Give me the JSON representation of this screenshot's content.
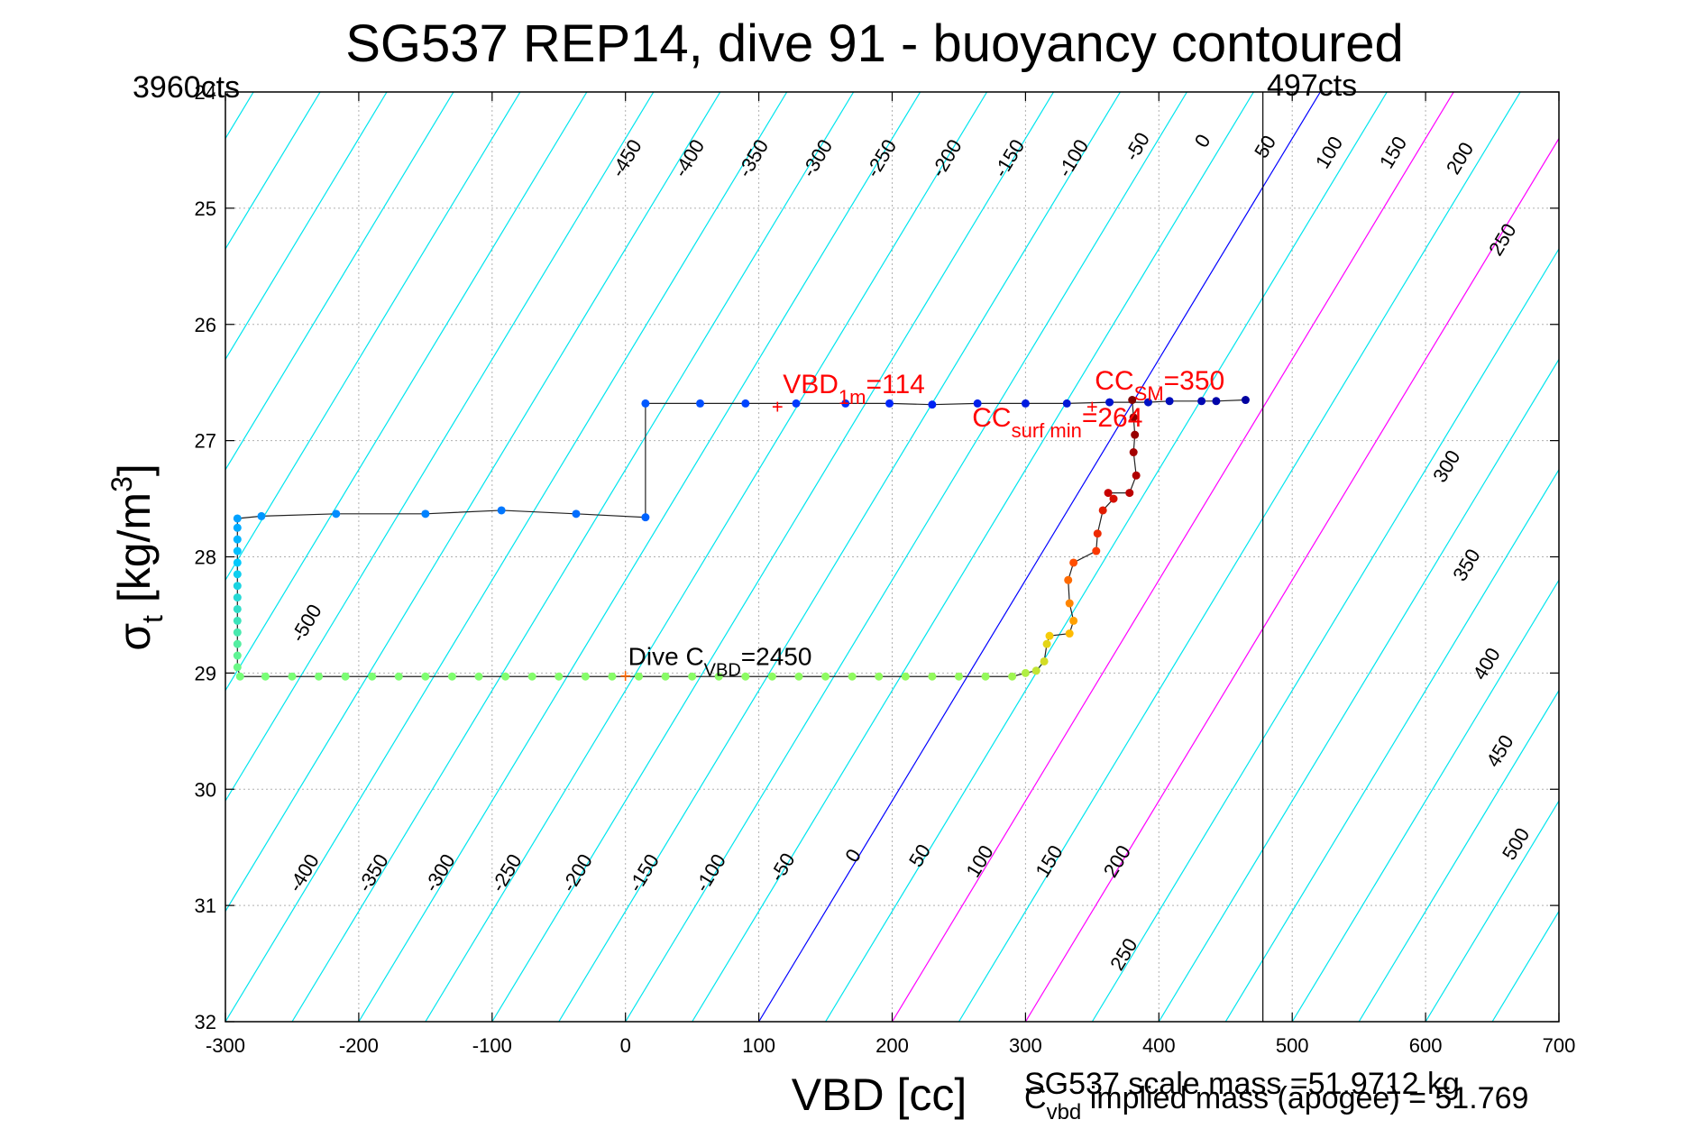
{
  "chart_data": {
    "type": "scatter",
    "title": "SG537 REP14, dive 91 - buoyancy contoured",
    "xlabel": "VBD [cc]",
    "ylabel": "σ",
    "ylabel_sub": "t",
    "ylabel_units_pre": " [kg/m",
    "ylabel_units_sup": "3",
    "ylabel_units_post": "]",
    "xlim": [
      -300,
      700
    ],
    "ylim": [
      24,
      32
    ],
    "y_reversed": true,
    "grid": true,
    "x_ticks": [
      -300,
      -200,
      -100,
      0,
      100,
      200,
      300,
      400,
      500,
      600,
      700
    ],
    "y_ticks": [
      24,
      25,
      26,
      27,
      28,
      29,
      30,
      31,
      32
    ],
    "corner_labels": {
      "left": "3960cts",
      "right": "497cts"
    },
    "vertical_marker_x": 478,
    "contours": {
      "slope_y_per_x": 0.019,
      "spacing": 50,
      "range": [
        -1000,
        700
      ],
      "colors": {
        "default": "#00e5ee",
        "zero": "#0000ff",
        "highlight": "#ff00ff"
      },
      "highlight_values": [
        100,
        200
      ],
      "top_labels": [
        {
          "text": "-450",
          "x": 5,
          "y": 24.6
        },
        {
          "text": "-400",
          "x": 52,
          "y": 24.6
        },
        {
          "text": "-350",
          "x": 100,
          "y": 24.6
        },
        {
          "text": "-300",
          "x": 148,
          "y": 24.6
        },
        {
          "text": "-250",
          "x": 196,
          "y": 24.6
        },
        {
          "text": "-200",
          "x": 245,
          "y": 24.6
        },
        {
          "text": "-150",
          "x": 292,
          "y": 24.6
        },
        {
          "text": "-100",
          "x": 340,
          "y": 24.6
        },
        {
          "text": "-50",
          "x": 388,
          "y": 24.5
        },
        {
          "text": "0",
          "x": 437,
          "y": 24.45
        },
        {
          "text": "50",
          "x": 484,
          "y": 24.5
        },
        {
          "text": "100",
          "x": 532,
          "y": 24.55
        },
        {
          "text": "150",
          "x": 580,
          "y": 24.55
        },
        {
          "text": "200",
          "x": 630,
          "y": 24.6
        },
        {
          "text": "250",
          "x": 662,
          "y": 25.3
        }
      ],
      "right_labels": [
        {
          "text": "300",
          "x": 620,
          "y": 27.25
        },
        {
          "text": "350",
          "x": 635,
          "y": 28.1
        },
        {
          "text": "400",
          "x": 650,
          "y": 28.95
        },
        {
          "text": "450",
          "x": 660,
          "y": 29.7
        },
        {
          "text": "500",
          "x": 672,
          "y": 30.5
        }
      ],
      "bottom_labels": [
        {
          "text": "-500",
          "x": -235,
          "y": 28.6
        },
        {
          "text": "-400",
          "x": -237,
          "y": 30.75
        },
        {
          "text": "-350",
          "x": -185,
          "y": 30.75
        },
        {
          "text": "-300",
          "x": -135,
          "y": 30.75
        },
        {
          "text": "-250",
          "x": -85,
          "y": 30.75
        },
        {
          "text": "-200",
          "x": -32,
          "y": 30.75
        },
        {
          "text": "-150",
          "x": 18,
          "y": 30.75
        },
        {
          "text": "-100",
          "x": 68,
          "y": 30.75
        },
        {
          "text": "-50",
          "x": 122,
          "y": 30.7
        },
        {
          "text": "0",
          "x": 175,
          "y": 30.6
        },
        {
          "text": "50",
          "x": 225,
          "y": 30.6
        },
        {
          "text": "100",
          "x": 270,
          "y": 30.65
        },
        {
          "text": "150",
          "x": 322,
          "y": 30.65
        },
        {
          "text": "200",
          "x": 373,
          "y": 30.65
        },
        {
          "text": "250",
          "x": 378,
          "y": 31.45
        }
      ]
    },
    "series": [
      {
        "color_scale": "depth",
        "points": [
          [
            465,
            26.65
          ],
          [
            443,
            26.66
          ],
          [
            432,
            26.66
          ],
          [
            408,
            26.66
          ],
          [
            392,
            26.67
          ],
          [
            363,
            26.67
          ],
          [
            331,
            26.68
          ],
          [
            300,
            26.68
          ],
          [
            264,
            26.68
          ],
          [
            230,
            26.69
          ],
          [
            198,
            26.68
          ],
          [
            165,
            26.68
          ],
          [
            128,
            26.68
          ],
          [
            90,
            26.68
          ],
          [
            56,
            26.68
          ],
          [
            15,
            26.68
          ],
          [
            15,
            27.66
          ],
          [
            -37,
            27.63
          ],
          [
            -93,
            27.6
          ],
          [
            -150,
            27.63
          ],
          [
            -217,
            27.63
          ],
          [
            -273,
            27.65
          ],
          [
            -291,
            27.67
          ],
          [
            -291,
            27.75
          ],
          [
            -291,
            27.85
          ],
          [
            -291,
            27.95
          ],
          [
            -291,
            28.05
          ],
          [
            -291,
            28.15
          ],
          [
            -291,
            28.25
          ],
          [
            -291,
            28.35
          ],
          [
            -291,
            28.45
          ],
          [
            -291,
            28.55
          ],
          [
            -291,
            28.65
          ],
          [
            -291,
            28.75
          ],
          [
            -291,
            28.85
          ],
          [
            -291,
            28.95
          ],
          [
            -289,
            29.03
          ],
          [
            -270,
            29.03
          ],
          [
            -250,
            29.03
          ],
          [
            -230,
            29.03
          ],
          [
            -210,
            29.03
          ],
          [
            -190,
            29.03
          ],
          [
            -170,
            29.03
          ],
          [
            -150,
            29.03
          ],
          [
            -130,
            29.03
          ],
          [
            -110,
            29.03
          ],
          [
            -90,
            29.03
          ],
          [
            -70,
            29.03
          ],
          [
            -50,
            29.03
          ],
          [
            -30,
            29.03
          ],
          [
            -10,
            29.03
          ],
          [
            10,
            29.03
          ],
          [
            30,
            29.03
          ],
          [
            50,
            29.03
          ],
          [
            70,
            29.03
          ],
          [
            90,
            29.03
          ],
          [
            110,
            29.03
          ],
          [
            130,
            29.03
          ],
          [
            150,
            29.03
          ],
          [
            170,
            29.03
          ],
          [
            190,
            29.03
          ],
          [
            210,
            29.03
          ],
          [
            230,
            29.03
          ],
          [
            250,
            29.03
          ],
          [
            270,
            29.03
          ],
          [
            290,
            29.03
          ],
          [
            300,
            29.0
          ],
          [
            308,
            28.98
          ],
          [
            314,
            28.9
          ],
          [
            316,
            28.75
          ],
          [
            318,
            28.68
          ],
          [
            333,
            28.66
          ],
          [
            336,
            28.55
          ],
          [
            333,
            28.4
          ],
          [
            332,
            28.2
          ],
          [
            336,
            28.05
          ],
          [
            353,
            27.95
          ],
          [
            354,
            27.8
          ],
          [
            358,
            27.6
          ],
          [
            366,
            27.5
          ],
          [
            362,
            27.45
          ],
          [
            378,
            27.45
          ],
          [
            383,
            27.3
          ],
          [
            381,
            27.1
          ],
          [
            382,
            26.95
          ],
          [
            381,
            26.8
          ],
          [
            380,
            26.65
          ]
        ]
      }
    ],
    "annotations": [
      {
        "marker": "+",
        "color": "#ff0000",
        "x": 114,
        "y": 26.71,
        "label": "VBD",
        "sub": "1m",
        "suffix": "=114",
        "lx": 118,
        "ly": 26.59,
        "size": 30
      },
      {
        "marker": "+",
        "color": "#ff0000",
        "x": 350,
        "y": 26.71,
        "label": "CC",
        "sub": "SM",
        "suffix": "=350",
        "lx": 352,
        "ly": 26.56,
        "size": 30
      },
      {
        "marker": "",
        "color": "#ff0000",
        "x": 264,
        "y": 26.9,
        "label": "CC",
        "sub": "surf min",
        "suffix": "=264",
        "lx": 260,
        "ly": 26.88,
        "size": 30
      },
      {
        "marker": "+",
        "color": "#ff6600",
        "x": 0,
        "y": 29.03,
        "label": "Dive C",
        "sub": "VBD",
        "suffix": "=2450",
        "lx": 2,
        "ly": 28.93,
        "size": 28,
        "text_color": "#000000"
      }
    ],
    "footnotes": {
      "mass": "SG537 scale mass =51.9712 kg",
      "implied_main": "C",
      "implied_sub": "vbd",
      "implied_rest": " implied mass (apogee) = 51.769"
    }
  }
}
